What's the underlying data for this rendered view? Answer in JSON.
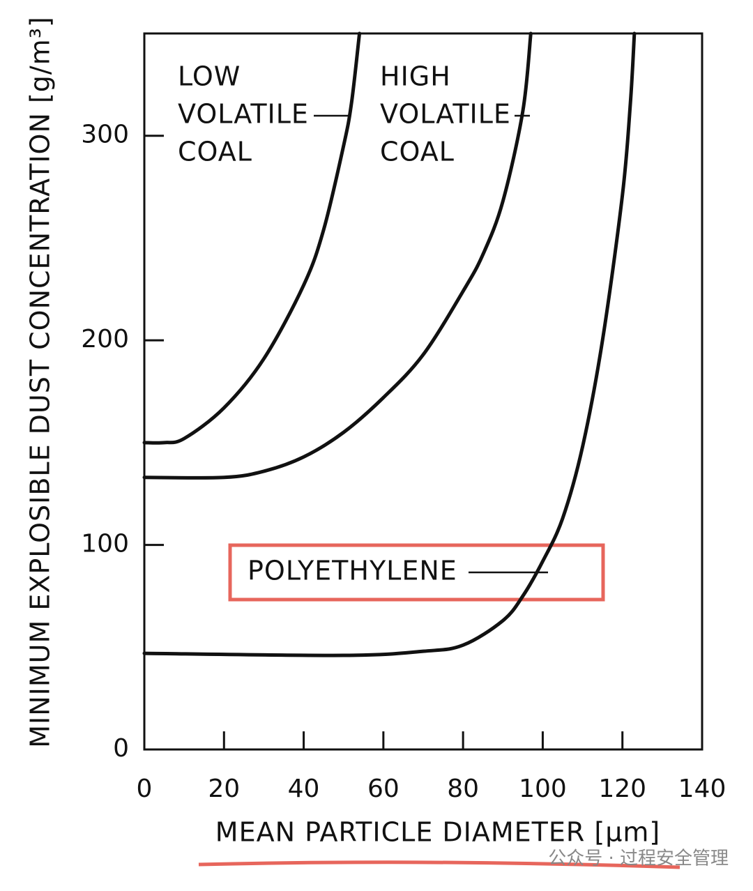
{
  "chart_data": {
    "type": "line",
    "xlabel": "MEAN PARTICLE DIAMETER [µm]",
    "ylabel": "MINIMUM EXPLOSIBLE DUST CONCENTRATION [g/m³]",
    "xlim": [
      0,
      140
    ],
    "ylim": [
      0,
      350
    ],
    "xticks": [
      0,
      20,
      40,
      60,
      80,
      100,
      120,
      140
    ],
    "yticks": [
      0,
      100,
      200,
      300
    ],
    "series": [
      {
        "name_lines": [
          "LOW",
          "VOLATILE",
          "COAL"
        ],
        "color": "#111111",
        "x": [
          0,
          5,
          10,
          20,
          30,
          40,
          45,
          50,
          52,
          54
        ],
        "values": [
          150,
          150,
          152,
          167,
          191,
          227,
          254,
          295,
          316,
          350
        ]
      },
      {
        "name_lines": [
          "HIGH",
          "VOLATILE",
          "COAL"
        ],
        "color": "#111111",
        "x": [
          0,
          20,
          30,
          40,
          50,
          60,
          70,
          80,
          85,
          90,
          95,
          97
        ],
        "values": [
          133,
          133,
          136,
          143,
          155,
          172,
          193,
          224,
          242,
          268,
          312,
          350
        ]
      },
      {
        "name_lines": [
          "POLYETHYLENE"
        ],
        "color": "#111111",
        "x": [
          0,
          50,
          70,
          80,
          90,
          95,
          100,
          105,
          110,
          115,
          120,
          122,
          123
        ],
        "values": [
          47,
          46,
          48,
          51,
          63,
          75,
          92,
          113,
          148,
          200,
          271,
          316,
          350
        ]
      }
    ],
    "watermark": "公众号 · 过程安全管理"
  }
}
